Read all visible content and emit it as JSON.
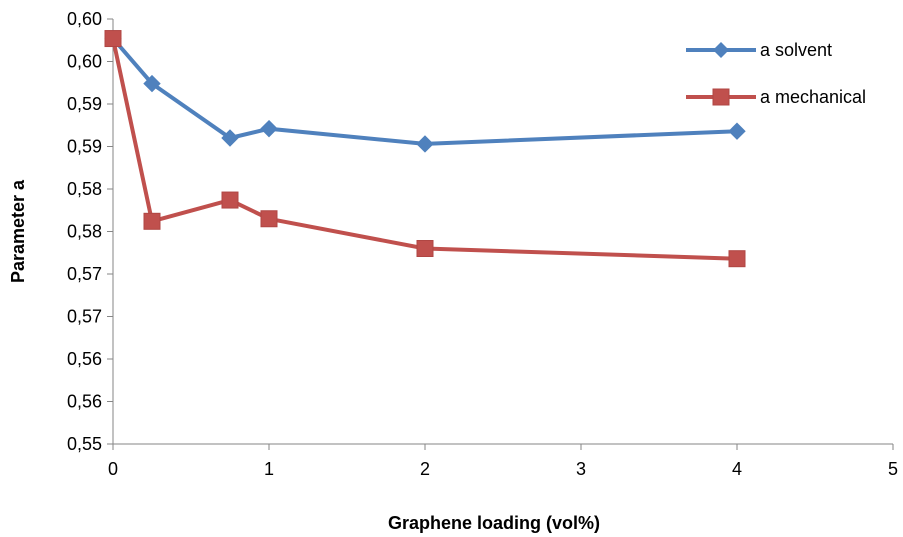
{
  "chart_data": {
    "type": "line",
    "xlabel": "Graphene loading (vol%)",
    "ylabel": "Parameter a",
    "xlim": [
      0,
      5
    ],
    "ylim": [
      0.55,
      0.6
    ],
    "x_ticks": [
      0,
      1,
      2,
      3,
      4,
      5
    ],
    "x_tick_labels": [
      "0",
      "1",
      "2",
      "3",
      "4",
      "5"
    ],
    "y_ticks": [
      0.55,
      0.555,
      0.56,
      0.565,
      0.57,
      0.575,
      0.58,
      0.585,
      0.59,
      0.595,
      0.6
    ],
    "y_tick_labels": [
      "0,55",
      "0,56",
      "0,56",
      "0,57",
      "0,57",
      "0,58",
      "0,58",
      "0,59",
      "0,59",
      "0,60",
      "0,60"
    ],
    "grid": false,
    "legend_position": "top-right",
    "series": [
      {
        "name": "a solvent",
        "color": "#4f81bd",
        "marker": "diamond",
        "x": [
          0,
          0.25,
          0.75,
          1,
          2,
          4
        ],
        "values": [
          0.5977,
          0.5924,
          0.586,
          0.5871,
          0.5853,
          0.5868
        ]
      },
      {
        "name": "a mechanical",
        "color": "#c0504d",
        "marker": "square",
        "x": [
          0,
          0.25,
          0.75,
          1,
          2,
          4
        ],
        "values": [
          0.5977,
          0.5762,
          0.5787,
          0.5765,
          0.573,
          0.5718
        ]
      }
    ]
  }
}
